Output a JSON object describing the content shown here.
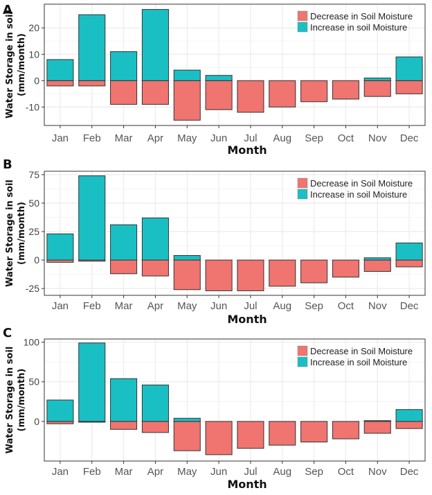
{
  "colors": {
    "decrease": "#F07470",
    "increase": "#1ABFC4",
    "grid": "#EBEBEB",
    "frame": "#333333"
  },
  "chart_data": [
    {
      "panel": "A",
      "type": "bar",
      "stacked": true,
      "categories": [
        "Jan",
        "Feb",
        "Mar",
        "Apr",
        "May",
        "Jun",
        "Jul",
        "Aug",
        "Sep",
        "Oct",
        "Nov",
        "Dec"
      ],
      "series": [
        {
          "name": "Decrease in Soil Moisture",
          "values": [
            -2,
            -2,
            -9,
            -9,
            -15,
            -11,
            -12,
            -10,
            -8,
            -7,
            -6,
            -5
          ]
        },
        {
          "name": "Increase in soil Moisture",
          "values": [
            8,
            25,
            11,
            27,
            4,
            2,
            0,
            0,
            0,
            0,
            1,
            9
          ]
        }
      ],
      "xlabel": "Month",
      "ylabel": [
        "Water Storage in soil",
        "(mm/month)"
      ],
      "ylim": [
        -17,
        29
      ],
      "yticks": [
        -10,
        0,
        10,
        20
      ],
      "legend": "top-right"
    },
    {
      "panel": "B",
      "type": "bar",
      "stacked": true,
      "categories": [
        "Jan",
        "Feb",
        "Mar",
        "Apr",
        "May",
        "Jun",
        "Jul",
        "Aug",
        "Sep",
        "Oct",
        "Nov",
        "Dec"
      ],
      "series": [
        {
          "name": "Decrease in Soil Moisture",
          "values": [
            -2,
            -1,
            -12,
            -14,
            -26,
            -27,
            -27,
            -23,
            -20,
            -15,
            -10,
            -6
          ]
        },
        {
          "name": "Increase in soil Moisture",
          "values": [
            23,
            74,
            31,
            37,
            4,
            0,
            0,
            0,
            0,
            0,
            2,
            15
          ]
        }
      ],
      "xlabel": "Month",
      "ylabel": [
        "Water Storage in soil",
        "(mm/month)"
      ],
      "ylim": [
        -31,
        78
      ],
      "yticks": [
        -25,
        0,
        25,
        50,
        75
      ],
      "legend": "top-right"
    },
    {
      "panel": "C",
      "type": "bar",
      "stacked": true,
      "categories": [
        "Jan",
        "Feb",
        "Mar",
        "Apr",
        "May",
        "Jun",
        "Jul",
        "Aug",
        "Sep",
        "Oct",
        "Nov",
        "Dec"
      ],
      "series": [
        {
          "name": "Decrease in Soil Moisture",
          "values": [
            -3,
            -1,
            -10,
            -14,
            -37,
            -42,
            -34,
            -30,
            -26,
            -22,
            -15,
            -9
          ]
        },
        {
          "name": "Increase in soil Moisture",
          "values": [
            27,
            99,
            54,
            46,
            4,
            0,
            0,
            0,
            0,
            0,
            1,
            15
          ]
        }
      ],
      "xlabel": "Month",
      "ylabel": [
        "Water Storage in soil",
        "(mm/month)"
      ],
      "ylim": [
        -50,
        104
      ],
      "yticks": [
        0,
        50,
        100
      ],
      "legend": "top-right"
    }
  ]
}
